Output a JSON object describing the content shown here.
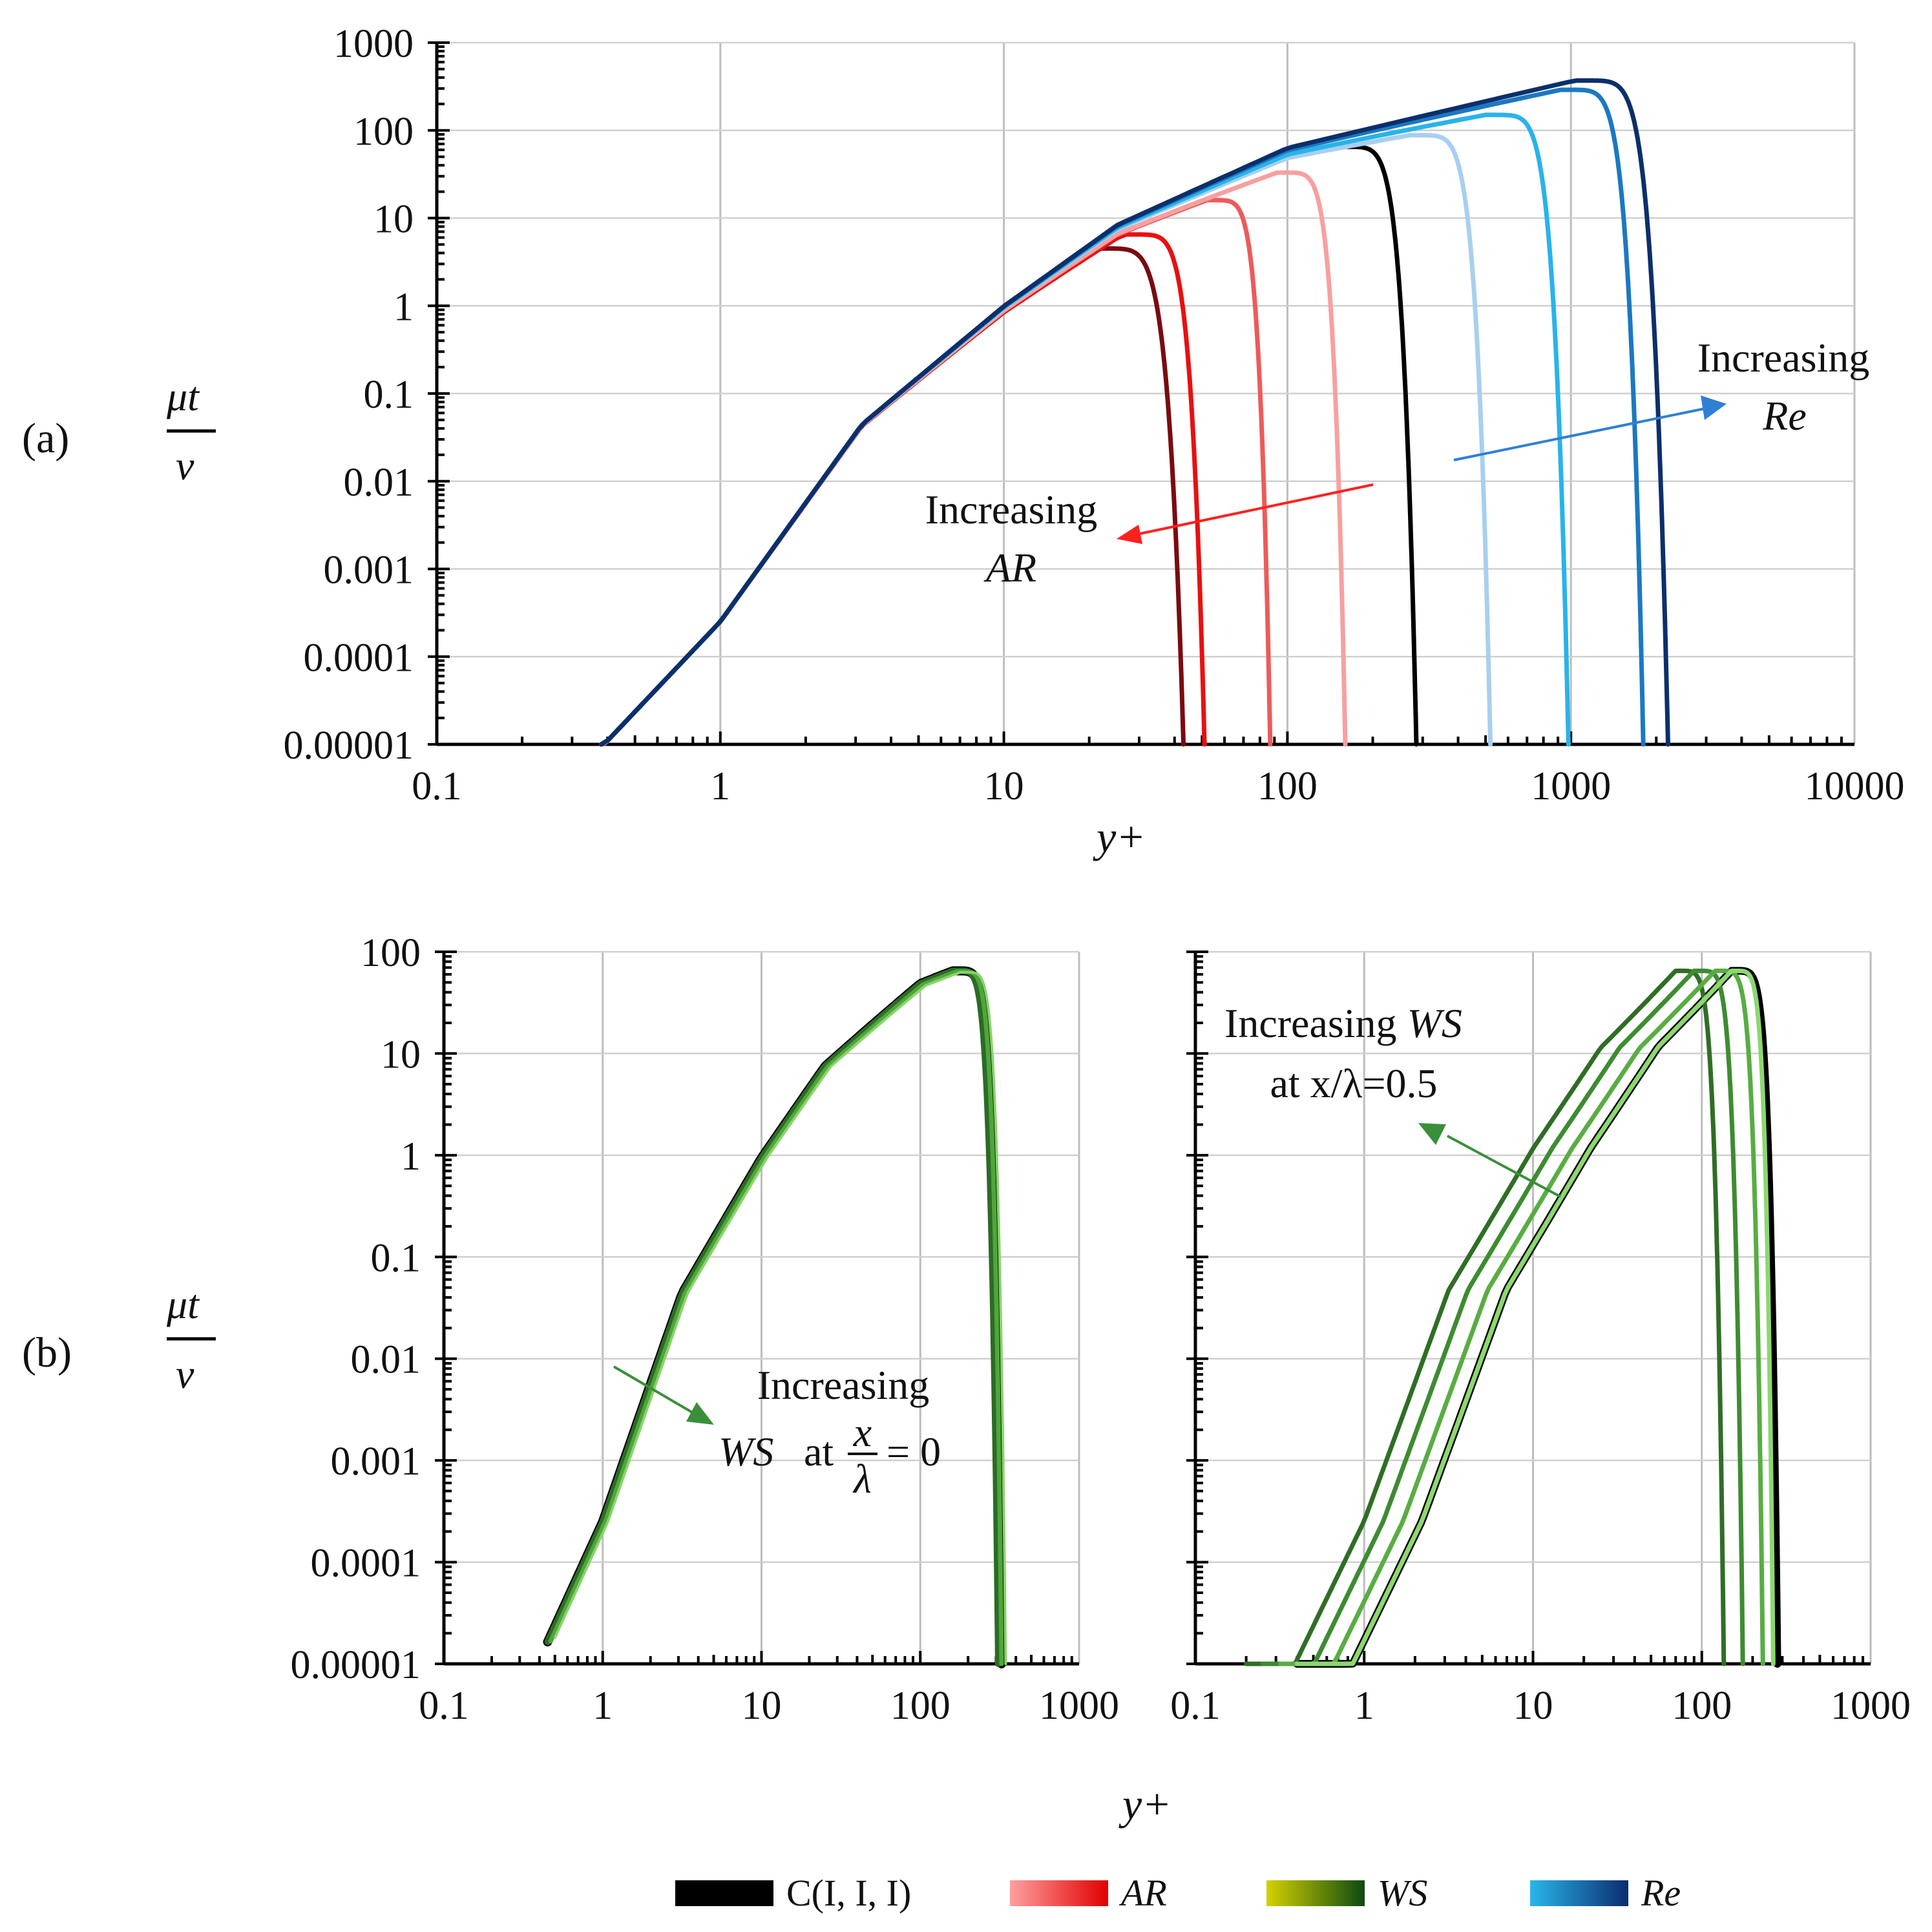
{
  "figure": {
    "panel_a_label": "(a)",
    "panel_b_label": "(b)",
    "ylabel_top": "μt",
    "ylabel_bottom": "ν",
    "xlabel": "y+"
  },
  "legend": [
    {
      "name": "C(I, I, I)",
      "colors": [
        "#000000",
        "#000000"
      ]
    },
    {
      "name": "AR",
      "colors": [
        "#ff9f9f",
        "#e00000"
      ]
    },
    {
      "name": "WS",
      "colors": [
        "#d4d200",
        "#0d4a10"
      ]
    },
    {
      "name": "Re",
      "colors": [
        "#29b6ea",
        "#0a2c6e"
      ]
    }
  ],
  "annotations": {
    "a_ar_line1": "Increasing",
    "a_ar_line2": "AR",
    "a_re_line1": "Increasing",
    "a_re_line2": "Re",
    "b1_line1": "Increasing",
    "b1_ws": "WS",
    "b1_at": "at",
    "b1_frac_num": "x",
    "b1_frac_den": "λ",
    "b1_eq": "= 0",
    "b2_line1_a": "Increasing",
    "b2_line1_b": "WS",
    "b2_line2": "at x/λ=0.5"
  },
  "colors": {
    "axis": "#000000",
    "grid": "#bdbdbd",
    "ar_arrow": "#ff2020",
    "re_arrow": "#2f7fd6",
    "ws_arrow": "#3a8f3a"
  },
  "chart_data": [
    {
      "id": "a",
      "type": "line",
      "xscale": "log",
      "yscale": "log",
      "xlim": [
        0.1,
        10000
      ],
      "ylim": [
        1e-05,
        1000
      ],
      "xticks": [
        "0.1",
        "1",
        "10",
        "100",
        "1000",
        "10000"
      ],
      "yticks": [
        "0.00001",
        "0.0001",
        "0.001",
        "0.01",
        "0.1",
        "1",
        "10",
        "100",
        "1000"
      ],
      "xlabel": "y+",
      "ylabel": "μt/ν",
      "grid": true,
      "series": [
        {
          "name": "AR-1",
          "group": "AR",
          "color": "#7a0a10",
          "width": 7,
          "peak_y": 21,
          "peak_v": 4.5,
          "end_y": 43
        },
        {
          "name": "AR-2",
          "group": "AR",
          "color": "#e81010",
          "width": 7,
          "peak_y": 27,
          "peak_v": 6.5,
          "end_y": 51
        },
        {
          "name": "AR-3",
          "group": "AR",
          "color": "#ee5a5a",
          "width": 7,
          "peak_y": 52,
          "peak_v": 16,
          "end_y": 87
        },
        {
          "name": "AR-4",
          "group": "AR",
          "color": "#f7a0a0",
          "width": 7,
          "peak_y": 92,
          "peak_v": 33,
          "end_y": 160
        },
        {
          "name": "C(I, I, I)",
          "group": "C",
          "color": "#000000",
          "width": 7,
          "peak_y": 150,
          "peak_v": 65,
          "end_y": 285
        },
        {
          "name": "Re-1",
          "group": "Re",
          "color": "#a8cff0",
          "width": 7,
          "peak_y": 270,
          "peak_v": 88,
          "end_y": 520
        },
        {
          "name": "Re-2",
          "group": "Re",
          "color": "#29b3ea",
          "width": 7,
          "peak_y": 500,
          "peak_v": 150,
          "end_y": 980
        },
        {
          "name": "Re-3",
          "group": "Re",
          "color": "#1b78c2",
          "width": 7,
          "peak_y": 920,
          "peak_v": 290,
          "end_y": 1800
        },
        {
          "name": "Re-4",
          "group": "Re",
          "color": "#0c2f6b",
          "width": 7,
          "peak_y": 1050,
          "peak_v": 370,
          "end_y": 2200
        }
      ]
    },
    {
      "id": "b1",
      "type": "line",
      "xscale": "log",
      "yscale": "log",
      "xlim": [
        0.1,
        1000
      ],
      "ylim": [
        1e-05,
        100
      ],
      "xticks": [
        "0.1",
        "1",
        "10",
        "100",
        "1000"
      ],
      "yticks": [
        "0.00001",
        "0.0001",
        "0.001",
        "0.01",
        "0.1",
        "1",
        "10",
        "100"
      ],
      "xlabel": "y+",
      "ylabel": "μt/ν",
      "grid": true,
      "series": [
        {
          "name": "C(I, I, I)",
          "color": "#000000",
          "width": 14,
          "start_x": 0.45,
          "shift": 1.0,
          "peak_y": 160,
          "peak_v": 65,
          "end_y": 325
        },
        {
          "name": "WS-1",
          "color": "#2c6b26",
          "width": 10,
          "start_x": 0.45,
          "shift": 1.0,
          "peak_y": 160,
          "peak_v": 65,
          "end_y": 310
        },
        {
          "name": "WS-2",
          "color": "#4fa63b",
          "width": 7,
          "start_x": 0.47,
          "shift": 1.04,
          "peak_y": 170,
          "peak_v": 64,
          "end_y": 325
        },
        {
          "name": "WS-3",
          "color": "#88d46a",
          "width": 4,
          "start_x": 0.5,
          "shift": 1.08,
          "peak_y": 180,
          "peak_v": 63,
          "end_y": 345
        }
      ]
    },
    {
      "id": "b2",
      "type": "line",
      "xscale": "log",
      "yscale": "log",
      "xlim": [
        0.1,
        1000
      ],
      "ylim": [
        1e-05,
        100
      ],
      "xticks": [
        "0.1",
        "1",
        "10",
        "100",
        "1000"
      ],
      "xlabel": "y+",
      "grid": true,
      "series": [
        {
          "name": "C(I, I, I)",
          "color": "#000000",
          "width": 12,
          "start_x": 0.4,
          "shift": 2.2,
          "peak_y": 150,
          "peak_v": 65,
          "end_y": 280
        },
        {
          "name": "WS-1",
          "color": "#2f6e25",
          "width": 7,
          "start_x": 0.2,
          "shift": 1.0,
          "peak_y": 70,
          "peak_v": 65,
          "end_y": 135
        },
        {
          "name": "WS-2",
          "color": "#3d8c30",
          "width": 7,
          "start_x": 0.25,
          "shift": 1.3,
          "peak_y": 90,
          "peak_v": 65,
          "end_y": 175
        },
        {
          "name": "WS-3",
          "color": "#58ad42",
          "width": 7,
          "start_x": 0.32,
          "shift": 1.7,
          "peak_y": 120,
          "peak_v": 65,
          "end_y": 230
        },
        {
          "name": "WS-4",
          "color": "#8cd86e",
          "width": 7,
          "start_x": 0.4,
          "shift": 2.2,
          "peak_y": 150,
          "peak_v": 65,
          "end_y": 265
        }
      ]
    }
  ]
}
